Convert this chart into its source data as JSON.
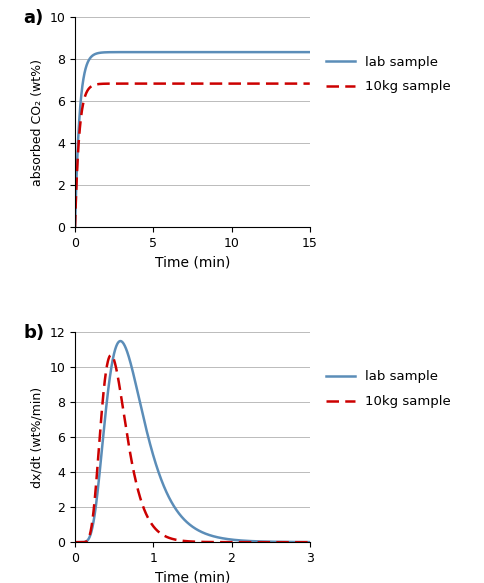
{
  "panel_a": {
    "title": "a)",
    "xlabel": "Time (min)",
    "ylabel": "absorbed CO₂ (wt%)",
    "xlim": [
      0,
      15
    ],
    "ylim": [
      0,
      10
    ],
    "xticks": [
      0,
      5,
      10,
      15
    ],
    "yticks": [
      0,
      2,
      4,
      6,
      8,
      10
    ],
    "lab_color": "#5B8DB8",
    "kg10_color": "#CC0000",
    "lab_label": "lab sample",
    "kg10_label": "10kg sample",
    "lab_asymptote": 8.35,
    "lab_rate": 3.5,
    "kg10_asymptote": 6.85,
    "kg10_rate": 3.8,
    "grid": true
  },
  "panel_b": {
    "title": "b)",
    "xlabel": "Time (min)",
    "ylabel": "dx/dt (wt%/min)",
    "xlim": [
      0,
      3
    ],
    "ylim": [
      0,
      12
    ],
    "xticks": [
      0,
      1,
      2,
      3
    ],
    "yticks": [
      0,
      2,
      4,
      6,
      8,
      10,
      12
    ],
    "lab_color": "#5B8DB8",
    "kg10_color": "#CC0000",
    "lab_label": "lab sample",
    "kg10_label": "10kg sample",
    "lab_peak": 11.5,
    "lab_peak_t": 0.58,
    "lab_sigma": 0.42,
    "kg10_peak": 10.7,
    "kg10_peak_t": 0.46,
    "kg10_sigma": 0.35,
    "grid": true
  },
  "background_color": "#FFFFFF"
}
